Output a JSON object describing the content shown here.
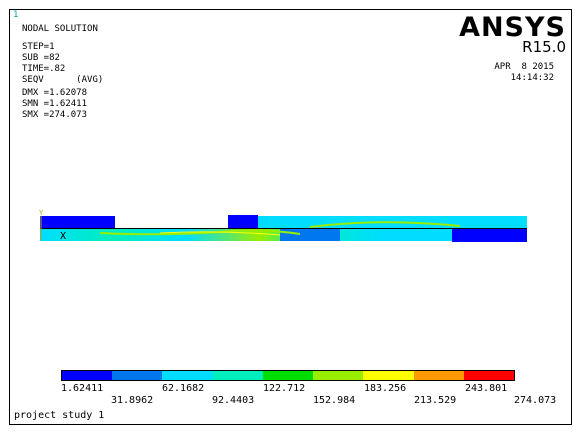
{
  "window_number": "1",
  "info": {
    "title": "NODAL SOLUTION",
    "step": "STEP=1",
    "sub": "SUB =82",
    "time": "TIME=.82",
    "quantity": "SEQV      (AVG)",
    "dmx": "DMX =1.62078",
    "smn": "SMN =1.62411",
    "smx": "SMX =274.073"
  },
  "brand": "ANSYS",
  "version": "R15.0",
  "date": "APR  8 2015",
  "time_stamp": "14:14:32",
  "axis_labels": {
    "y": "Y",
    "x": "X"
  },
  "legend": {
    "colors": [
      "#0000ff",
      "#0077ee",
      "#00ddff",
      "#00eebb",
      "#00dd00",
      "#99ee00",
      "#ffff00",
      "#ff9900",
      "#ff0000"
    ],
    "top_labels": [
      "1.62411",
      "62.1682",
      "122.712",
      "183.256",
      "243.801"
    ],
    "bottom_labels": [
      "31.8962",
      "92.4403",
      "152.984",
      "213.529",
      "274.073"
    ]
  },
  "footer": "project study 1"
}
